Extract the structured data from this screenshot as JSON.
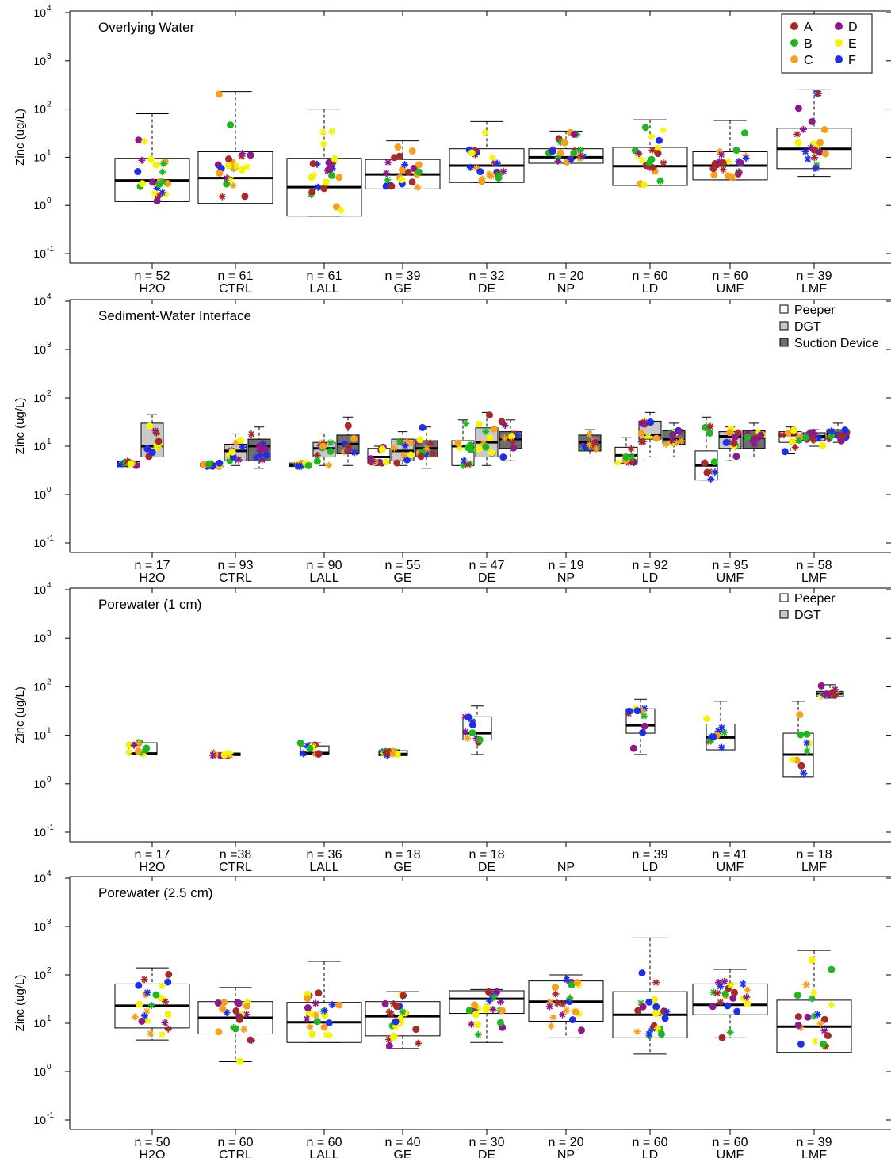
{
  "colors": {
    "A": "#a52a2a",
    "B": "#22b422",
    "C": "#f5a020",
    "D": "#8b1a8b",
    "E": "#f2f20a",
    "F": "#1f2fe6",
    "Peeper": "#ffffff",
    "DGT": "#c8c8c8",
    "Suction Device": "#6e6e6e"
  },
  "chart_data": [
    {
      "type": "box",
      "title": "Overlying Water",
      "ylabel": "Zinc (ug/L)",
      "yscale": "log",
      "ylim": [
        0.1,
        10000
      ],
      "yticks": [
        "10^-1",
        "10^0",
        "10^1",
        "10^2",
        "10^3",
        "10^4"
      ],
      "categories": [
        "H2O",
        "CTRL",
        "LALL",
        "GE",
        "DE",
        "NP",
        "LD",
        "UMF",
        "LMF"
      ],
      "counts": [
        "n = 52",
        "n = 61",
        "n = 61",
        "n = 39",
        "n = 32",
        "n = 20",
        "n = 60",
        "n = 60",
        "n = 39"
      ],
      "legend": {
        "position": "top-right",
        "entries": [
          "A",
          "B",
          "C",
          "D",
          "E",
          "F"
        ]
      },
      "series": [
        {
          "boxes": [
            {
              "q1": 1.2,
              "median": 3.3,
              "q3": 9.5,
              "lo": 1.2,
              "hi": 80
            },
            {
              "q1": 1.1,
              "median": 3.7,
              "q3": 13,
              "lo": 1.1,
              "hi": 230
            },
            {
              "q1": 0.6,
              "median": 2.4,
              "q3": 9.5,
              "lo": 0.6,
              "hi": 100
            },
            {
              "q1": 2.2,
              "median": 4.4,
              "q3": 9,
              "lo": 2.2,
              "hi": 22
            },
            {
              "q1": 3,
              "median": 6.7,
              "q3": 15,
              "lo": 3,
              "hi": 55
            },
            {
              "q1": 7.5,
              "median": 10,
              "q3": 15,
              "lo": 7.5,
              "hi": 35
            },
            {
              "q1": 2.6,
              "median": 6.5,
              "q3": 16,
              "lo": 2.6,
              "hi": 60
            },
            {
              "q1": 3.4,
              "median": 6.7,
              "q3": 13,
              "lo": 3.4,
              "hi": 58
            },
            {
              "q1": 5.8,
              "median": 15,
              "q3": 40,
              "lo": 4,
              "hi": 250
            }
          ]
        }
      ]
    },
    {
      "type": "box",
      "title": "Sediment-Water Interface",
      "ylabel": "Zinc (ug/L)",
      "yscale": "log",
      "ylim": [
        0.1,
        10000
      ],
      "yticks": [
        "10^-1",
        "10^0",
        "10^1",
        "10^2",
        "10^3",
        "10^4"
      ],
      "categories": [
        "H2O",
        "CTRL",
        "LALL",
        "GE",
        "DE",
        "NP",
        "LD",
        "UMF",
        "LMF"
      ],
      "counts": [
        "n = 17",
        "n = 93",
        "n = 90",
        "n = 55",
        "n = 47",
        "n = 19",
        "n = 92",
        "n = 95",
        "n = 58"
      ],
      "legend": {
        "position": "top-right",
        "entries": [
          "Peeper",
          "DGT",
          "Suction Device"
        ]
      },
      "series": [
        {
          "name": "Peeper",
          "boxes": [
            {
              "q1": 3.8,
              "median": 4.2,
              "q3": 4.8,
              "lo": 3.8,
              "hi": 5
            },
            {
              "q1": 3.8,
              "median": 4.1,
              "q3": 4.5,
              "lo": 3.8,
              "hi": 4.5
            },
            {
              "q1": 3.8,
              "median": 4.1,
              "q3": 4.5,
              "lo": 3.8,
              "hi": 4.5
            },
            {
              "q1": 4.5,
              "median": 6,
              "q3": 9,
              "lo": 4,
              "hi": 10
            },
            {
              "q1": 4,
              "median": 10,
              "q3": 13,
              "lo": 4,
              "hi": 35
            },
            null,
            {
              "q1": 4.5,
              "median": 6.5,
              "q3": 9.5,
              "lo": 4.5,
              "hi": 15
            },
            {
              "q1": 2,
              "median": 4,
              "q3": 8,
              "lo": 2,
              "hi": 40
            },
            {
              "q1": 12,
              "median": 17,
              "q3": 20,
              "lo": 7,
              "hi": 25
            }
          ]
        },
        {
          "name": "DGT",
          "boxes": [
            {
              "q1": 6,
              "median": 10,
              "q3": 30,
              "lo": 6,
              "hi": 45
            },
            {
              "q1": 5,
              "median": 8,
              "q3": 11,
              "lo": 4,
              "hi": 18
            },
            {
              "q1": 6,
              "median": 9,
              "q3": 12,
              "lo": 4,
              "hi": 18
            },
            {
              "q1": 5,
              "median": 8,
              "q3": 14,
              "lo": 4,
              "hi": 20
            },
            {
              "q1": 6,
              "median": 12,
              "q3": 24,
              "lo": 4,
              "hi": 50
            },
            null,
            {
              "q1": 14,
              "median": 17,
              "q3": 33,
              "lo": 6,
              "hi": 50
            },
            {
              "q1": 9,
              "median": 16,
              "q3": 20,
              "lo": 5,
              "hi": 25
            },
            {
              "q1": 13,
              "median": 16,
              "q3": 19,
              "lo": 10,
              "hi": 22
            }
          ]
        },
        {
          "name": "Suction Device",
          "boxes": [
            null,
            {
              "q1": 5,
              "median": 10,
              "q3": 14,
              "lo": 3.5,
              "hi": 25
            },
            {
              "q1": 7,
              "median": 11,
              "q3": 17,
              "lo": 4,
              "hi": 40
            },
            {
              "q1": 6,
              "median": 9,
              "q3": 13,
              "lo": 3.5,
              "hi": 25
            },
            {
              "q1": 9,
              "median": 14,
              "q3": 20,
              "lo": 5,
              "hi": 35
            },
            {
              "q1": 8,
              "median": 12,
              "q3": 17,
              "lo": 6,
              "hi": 22
            },
            {
              "q1": 11,
              "median": 14,
              "q3": 21,
              "lo": 6,
              "hi": 30
            },
            {
              "q1": 9,
              "median": 15,
              "q3": 21,
              "lo": 6,
              "hi": 30
            },
            {
              "q1": 15,
              "median": 18,
              "q3": 22,
              "lo": 12,
              "hi": 30
            }
          ]
        }
      ]
    },
    {
      "type": "box",
      "title": "Porewater (1 cm)",
      "ylabel": "Zinc (ug/L)",
      "yscale": "log",
      "ylim": [
        0.1,
        10000
      ],
      "yticks": [
        "10^-1",
        "10^0",
        "10^1",
        "10^2",
        "10^3",
        "10^4"
      ],
      "categories": [
        "H2O",
        "CTRL",
        "LALL",
        "GE",
        "DE",
        "NP",
        "LD",
        "UMF",
        "LMF"
      ],
      "counts": [
        "n = 17",
        "n =38",
        "n = 36",
        "n = 18",
        "n = 18",
        "",
        "n = 39",
        "n = 41",
        "n = 18"
      ],
      "legend": {
        "position": "top-right",
        "entries": [
          "Peeper",
          "DGT"
        ]
      },
      "series": [
        {
          "name": "Peeper",
          "boxes": [
            {
              "q1": 4,
              "median": 4.2,
              "q3": 7,
              "lo": 4,
              "hi": 8
            },
            {
              "q1": 3.8,
              "median": 4,
              "q3": 4.3,
              "lo": 3.8,
              "hi": 4.3
            },
            {
              "q1": 4,
              "median": 4.3,
              "q3": 6,
              "lo": 4,
              "hi": 7
            },
            {
              "q1": 3.8,
              "median": 4.1,
              "q3": 4.8,
              "lo": 3.8,
              "hi": 5
            },
            {
              "q1": 8,
              "median": 11,
              "q3": 24,
              "lo": 4,
              "hi": 40
            },
            null,
            {
              "q1": 11,
              "median": 16,
              "q3": 35,
              "lo": 4,
              "hi": 55
            },
            {
              "q1": 5,
              "median": 9,
              "q3": 17,
              "lo": 5,
              "hi": 50
            },
            {
              "q1": 1.4,
              "median": 4,
              "q3": 11,
              "lo": 1.4,
              "hi": 50
            }
          ]
        },
        {
          "name": "DGT",
          "boxes": [
            null,
            null,
            null,
            null,
            null,
            null,
            null,
            null,
            {
              "q1": 62,
              "median": 72,
              "q3": 80,
              "lo": 58,
              "hi": 110
            }
          ]
        }
      ]
    },
    {
      "type": "box",
      "title": "Porewater (2.5 cm)",
      "ylabel": "Zinc (ug/L)",
      "yscale": "log",
      "ylim": [
        0.1,
        10000
      ],
      "yticks": [
        "10^-1",
        "10^0",
        "10^1",
        "10^2",
        "10^3",
        "10^4"
      ],
      "categories": [
        "H2O",
        "CTRL",
        "LALL",
        "GE",
        "DE",
        "NP",
        "LD",
        "UMF",
        "LMF"
      ],
      "counts": [
        "n = 50",
        "n = 60",
        "n = 60",
        "n = 40",
        "n = 30",
        "n = 20",
        "n = 60",
        "n = 60",
        "n = 39"
      ],
      "series": [
        {
          "boxes": [
            {
              "q1": 8,
              "median": 23,
              "q3": 65,
              "lo": 4.5,
              "hi": 140
            },
            {
              "q1": 6,
              "median": 13,
              "q3": 28,
              "lo": 1.6,
              "hi": 55
            },
            {
              "q1": 4,
              "median": 10.5,
              "q3": 27,
              "lo": 4,
              "hi": 190
            },
            {
              "q1": 5.5,
              "median": 14,
              "q3": 28,
              "lo": 3,
              "hi": 45
            },
            {
              "q1": 16,
              "median": 32,
              "q3": 47,
              "lo": 4,
              "hi": 50
            },
            {
              "q1": 11,
              "median": 28,
              "q3": 75,
              "lo": 5,
              "hi": 100
            },
            {
              "q1": 5,
              "median": 15,
              "q3": 45,
              "lo": 2.3,
              "hi": 580
            },
            {
              "q1": 15,
              "median": 24,
              "q3": 65,
              "lo": 5,
              "hi": 130
            },
            {
              "q1": 2.5,
              "median": 8.5,
              "q3": 30,
              "lo": 2.5,
              "hi": 320
            }
          ]
        }
      ]
    }
  ]
}
